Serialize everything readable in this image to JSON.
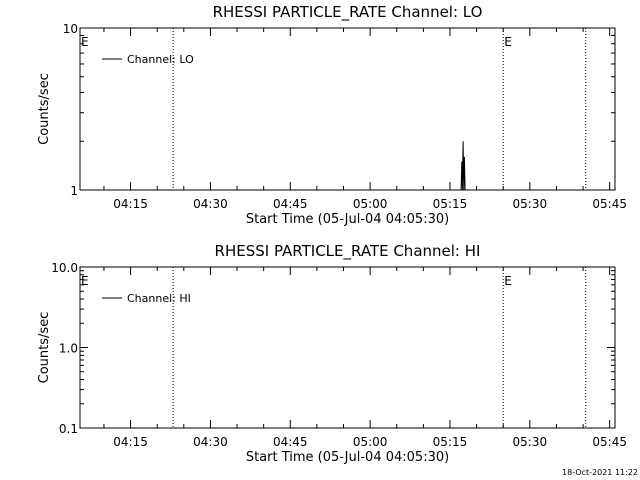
{
  "chart_data": [
    {
      "type": "line",
      "title": "RHESSI PARTICLE_RATE Channel: LO",
      "xlabel": "Start Time (05-Jul-04 04:05:30)",
      "ylabel": "Counts/sec",
      "x_range": [
        "04:05:30",
        "05:46:00"
      ],
      "ylim": [
        1,
        10
      ],
      "y_scale": "log",
      "y_tick_labels": [
        "1",
        "10"
      ],
      "x_tick_labels": [
        "04:15",
        "04:30",
        "04:45",
        "05:00",
        "05:15",
        "05:30",
        "05:45"
      ],
      "legend": "Channel: LO",
      "legend_position": "top-left",
      "markers": [
        {
          "label": "E",
          "time": "04:05:30"
        },
        {
          "label": "E",
          "time": "05:25:00"
        }
      ],
      "dotted_lines": [
        "04:23:00",
        "05:25:00",
        "05:40:30"
      ],
      "series": [
        {
          "x": [
            "05:17:05",
            "05:17:13",
            "05:17:20",
            "05:17:28",
            "05:17:36",
            "05:17:43",
            "05:17:50"
          ],
          "y": [
            1,
            1.5,
            1,
            2,
            1,
            1.6,
            1
          ]
        }
      ]
    },
    {
      "type": "line",
      "title": "RHESSI PARTICLE_RATE Channel: HI",
      "xlabel": "Start Time (05-Jul-04 04:05:30)",
      "ylabel": "Counts/sec",
      "x_range": [
        "04:05:30",
        "05:46:00"
      ],
      "ylim": [
        0.1,
        10
      ],
      "y_scale": "log",
      "y_tick_labels": [
        "0.1",
        "1.0",
        "10.0"
      ],
      "x_tick_labels": [
        "04:15",
        "04:30",
        "04:45",
        "05:00",
        "05:15",
        "05:30",
        "05:45"
      ],
      "legend": "Channel: HI",
      "legend_position": "top-left",
      "markers": [
        {
          "label": "E",
          "time": "04:05:30"
        },
        {
          "label": "E",
          "time": "05:25:00"
        }
      ],
      "dotted_lines": [
        "04:23:00",
        "05:25:00",
        "05:40:30"
      ],
      "series": []
    }
  ],
  "timestamp": "18-Oct-2021 11:22"
}
